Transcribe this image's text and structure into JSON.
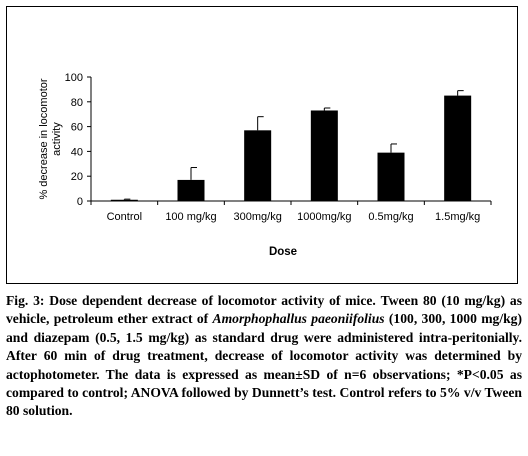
{
  "chart_data": {
    "type": "bar",
    "categories": [
      "Control",
      "100 mg/kg",
      "300mg/kg",
      "1000mg/kg",
      "0.5mg/kg",
      "1.5mg/kg"
    ],
    "values": [
      1,
      17,
      57,
      73,
      39,
      85
    ],
    "errors": [
      0.5,
      10,
      11,
      2,
      7,
      4
    ],
    "xlabel": "Dose",
    "ylabel": "% decrease in locomotor activity",
    "ylim": [
      0,
      100
    ],
    "yticks": [
      0,
      20,
      40,
      60,
      80,
      100
    ],
    "bar_color": "#000000",
    "grid": false,
    "legend": "none"
  },
  "caption": {
    "fig_label": "Fig. 3:",
    "fig_title": "Dose dependent decrease of locomotor activity of mice.",
    "text_before_species": "Tween 80 (10 mg/kg) as vehicle, petroleum ether extract of",
    "species": "Amorphophallus paeoniifolius",
    "text_after_species": "(100, 300, 1000 mg/kg) and diazepam (0.5, 1.5 mg/kg) as standard drug were administered intra-peritonially. After 60 min of drug treatment, decrease of locomotor activity was determined by actophotometer. The data is expressed as mean±SD of n=6 observations; *P<0.05 as compared to control; ANOVA followed by Dunnett’s test. Control refers to 5% v/v Tween 80 solution."
  }
}
